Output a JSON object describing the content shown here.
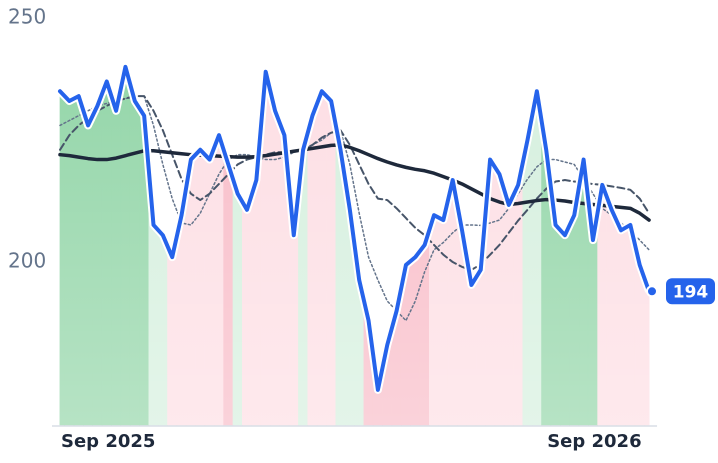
{
  "chart_data": {
    "type": "line",
    "categories": [
      "Sep 2025",
      null,
      null,
      null,
      null,
      null,
      null,
      null,
      null,
      null,
      null,
      null,
      null,
      null,
      null,
      null,
      null,
      null,
      null,
      null,
      null,
      null,
      null,
      null,
      null,
      null,
      null,
      null,
      null,
      null,
      null,
      null,
      null,
      null,
      null,
      null,
      null,
      null,
      null,
      null,
      null,
      null,
      null,
      null,
      null,
      null,
      null,
      null,
      null,
      null,
      null,
      null,
      "Sep 2026",
      null,
      null,
      null,
      null,
      null,
      null,
      null,
      null,
      null,
      null,
      null
    ],
    "ylim": [
      166.6,
      253.7
    ],
    "yticks": [
      200,
      250
    ],
    "series": [
      {
        "color": "#2563eb",
        "style": "solid",
        "values": [
          235,
          233,
          234,
          228,
          232,
          237,
          231,
          240,
          233,
          230,
          207.6,
          205.5,
          201,
          209.6,
          221,
          223,
          221,
          226,
          220,
          214,
          210.7,
          216.8,
          239,
          231,
          226,
          205.5,
          223,
          230,
          235,
          233,
          223,
          210.7,
          196.3,
          188,
          173.8,
          183,
          190,
          199.4,
          201,
          203.5,
          209.6,
          208.6,
          216.8,
          206.5,
          195.3,
          198.4,
          221,
          218,
          211.7,
          215.8,
          225,
          235,
          223,
          207.6,
          205.5,
          209.6,
          221,
          204.5,
          215.8,
          210.7,
          206.5,
          207.6,
          199.4,
          194
        ]
      },
      {
        "color": "#1e293b",
        "style": "solid",
        "values": [
          222,
          221.8,
          221.5,
          221.2,
          221,
          221,
          221.3,
          221.8,
          222.3,
          222.8,
          222.8,
          222.6,
          222.4,
          222.2,
          222,
          221.9,
          221.8,
          221.7,
          221.6,
          221.5,
          221.5,
          221.6,
          221.8,
          222.1,
          222.4,
          222.7,
          223,
          223.3,
          223.6,
          223.9,
          224,
          223.5,
          222.8,
          222,
          221.2,
          220.5,
          219.9,
          219.4,
          219,
          218.7,
          218.2,
          217.5,
          216.8,
          216,
          215,
          214,
          213,
          212.3,
          211.8,
          212,
          212.3,
          212.6,
          212.8,
          212.7,
          212.5,
          212.2,
          212,
          211.8,
          211.6,
          211.4,
          211.2,
          211,
          210,
          208.6
        ]
      },
      {
        "color": "#475569",
        "style": "dashed",
        "values": [
          223,
          226,
          228,
          229.5,
          231,
          232,
          233,
          233.5,
          234,
          234,
          231,
          227,
          222,
          217,
          214,
          212.7,
          214,
          216,
          218,
          220,
          221,
          221.5,
          222,
          222.5,
          222.5,
          222.8,
          223,
          224,
          225.5,
          226.5,
          227,
          224,
          220,
          216,
          213,
          212.7,
          211,
          209,
          207,
          205.5,
          203.5,
          201.5,
          200,
          199,
          198.4,
          199.5,
          201.5,
          203.5,
          206,
          208.5,
          210.7,
          213,
          215,
          216.5,
          216.8,
          216.5,
          216.2,
          216,
          215.8,
          215.5,
          215.2,
          214.8,
          213,
          210
        ]
      },
      {
        "color": "#64748b",
        "style": "dotted",
        "values": [
          228,
          229,
          230,
          231,
          232,
          232.5,
          233,
          233.5,
          234,
          234,
          228,
          220,
          213,
          208,
          207.6,
          210,
          214,
          218,
          221,
          222,
          222,
          221.5,
          221,
          221,
          221.5,
          222.5,
          223,
          224,
          225,
          226.5,
          227,
          220,
          210,
          201,
          196.3,
          192,
          190,
          188,
          192,
          198,
          202.5,
          204,
          206,
          207.6,
          207.6,
          207.5,
          208,
          208.6,
          211,
          214,
          217,
          219.5,
          221,
          221,
          220.5,
          220,
          217,
          214,
          211,
          209.6,
          208,
          206.5,
          204.5,
          202.5
        ]
      }
    ],
    "area_colors": [
      "#8fd4a5",
      "#8fd4a5",
      "#8fd4a5",
      "#8fd4a5",
      "#8fd4a5",
      "#8fd4a5",
      "#8fd4a5",
      "#8fd4a5",
      "#8fd4a5",
      "#8fd4a5",
      "#d4efdd",
      "#d4efdd",
      "#fddde3",
      "#fddde3",
      "#fddde3",
      "#fddde3",
      "#fddde3",
      "#fddde3",
      "#f8bac6",
      "#d4efdd",
      "#fddde3",
      "#fddde3",
      "#fddde3",
      "#fddde3",
      "#fddde3",
      "#fddde3",
      "#d4efdd",
      "#fddde3",
      "#fddde3",
      "#fddde3",
      "#d4efdd",
      "#d4efdd",
      "#d4efdd",
      "#f8bac6",
      "#f8bac6",
      "#f8bac6",
      "#f8bac6",
      "#f8bac6",
      "#f8bac6",
      "#f8bac6",
      "#fddde3",
      "#fddde3",
      "#fddde3",
      "#fddde3",
      "#fddde3",
      "#fddde3",
      "#fddde3",
      "#fddde3",
      "#fddde3",
      "#fddde3",
      "#d4efdd",
      "#d4efdd",
      "#8fd4a5",
      "#8fd4a5",
      "#8fd4a5",
      "#8fd4a5",
      "#8fd4a5",
      "#8fd4a5",
      "#fddde3",
      "#fddde3",
      "#fddde3",
      "#fddde3",
      "#fddde3",
      "#fddde3"
    ],
    "grid": false
  }
}
